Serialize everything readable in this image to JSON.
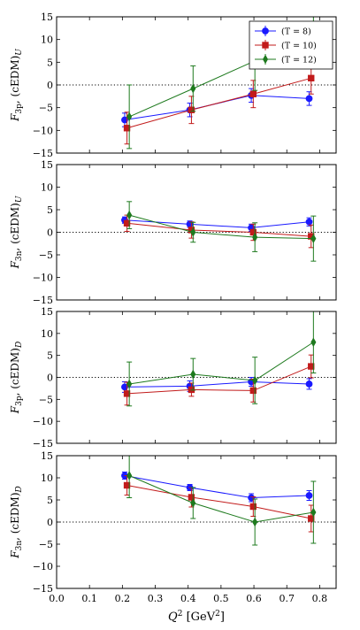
{
  "chart_data": {
    "type": "scatter",
    "xlabel": "Q^2 [GeV^2]",
    "xlim": [
      0.0,
      0.85
    ],
    "xticks": [
      "0.0",
      "0.1",
      "0.2",
      "0.3",
      "0.4",
      "0.5",
      "0.6",
      "0.7",
      "0.8"
    ],
    "error_bars": true,
    "reference_line": {
      "y": 0,
      "style": "dotted"
    },
    "legend": {
      "location": "top-right",
      "panel": 0,
      "entries": [
        "(T = 8)",
        "(T = 10)",
        "(T = 12)"
      ]
    },
    "series_styles": [
      {
        "name": "(T = 8)",
        "color": "#1a1aff",
        "marker": "circle"
      },
      {
        "name": "(T = 10)",
        "color": "#c21b1b",
        "marker": "square"
      },
      {
        "name": "(T = 12)",
        "color": "#1e7a1e",
        "marker": "diamond"
      }
    ],
    "panels": [
      {
        "ylabel": "F_{3p}, (cEDM)_U",
        "ylim": [
          -15,
          15
        ],
        "yticks": [
          "−15",
          "−10",
          "−5",
          "0",
          "5",
          "10",
          "15"
        ],
        "series": [
          {
            "name": "(T = 8)",
            "x": [
              0.207,
              0.405,
              0.592,
              0.768
            ],
            "y": [
              -7.7,
              -5.5,
              -2.3,
              -3.0
            ],
            "err": [
              1.5,
              1.5,
              1.5,
              1.5
            ]
          },
          {
            "name": "(T = 10)",
            "x": [
              0.214,
              0.41,
              0.598,
              0.774
            ],
            "y": [
              -9.5,
              -5.5,
              -2.0,
              1.5
            ],
            "err": [
              3.5,
              3.0,
              3.0,
              3.5
            ]
          },
          {
            "name": "(T = 12)",
            "x": [
              0.221,
              0.415,
              0.603,
              0.781
            ],
            "y": [
              -7.0,
              -0.8,
              5.3,
              10.0
            ],
            "err": [
              7.0,
              5.0,
              6.5,
              5.0
            ]
          }
        ]
      },
      {
        "ylabel": "F_{3n}, (cEDM)_U",
        "ylim": [
          -15,
          15
        ],
        "yticks": [
          "−15",
          "−10",
          "−5",
          "0",
          "5",
          "10",
          "15"
        ],
        "series": [
          {
            "name": "(T = 8)",
            "x": [
              0.207,
              0.405,
              0.592,
              0.768
            ],
            "y": [
              2.7,
              1.8,
              1.0,
              2.3
            ],
            "err": [
              0.7,
              0.7,
              0.8,
              0.9
            ]
          },
          {
            "name": "(T = 10)",
            "x": [
              0.214,
              0.41,
              0.598,
              0.774
            ],
            "y": [
              2.0,
              0.5,
              0.0,
              -0.9
            ],
            "err": [
              1.8,
              1.8,
              1.8,
              2.5
            ]
          },
          {
            "name": "(T = 12)",
            "x": [
              0.221,
              0.415,
              0.603,
              0.781
            ],
            "y": [
              3.8,
              0.0,
              -1.1,
              -1.4
            ],
            "err": [
              3.0,
              2.2,
              3.2,
              5.0
            ]
          }
        ]
      },
      {
        "ylabel": "F_{3p}, (cEDM)_D",
        "ylim": [
          -15,
          15
        ],
        "yticks": [
          "−15",
          "−10",
          "−5",
          "0",
          "5",
          "10",
          "15"
        ],
        "series": [
          {
            "name": "(T = 8)",
            "x": [
              0.207,
              0.405,
              0.592,
              0.768
            ],
            "y": [
              -2.2,
              -2.0,
              -1.0,
              -1.5
            ],
            "err": [
              1.2,
              1.2,
              1.0,
              1.2
            ]
          },
          {
            "name": "(T = 10)",
            "x": [
              0.214,
              0.41,
              0.598,
              0.774
            ],
            "y": [
              -3.7,
              -2.8,
              -3.0,
              2.5
            ],
            "err": [
              2.6,
              1.5,
              2.6,
              2.6
            ]
          },
          {
            "name": "(T = 12)",
            "x": [
              0.221,
              0.415,
              0.603,
              0.781
            ],
            "y": [
              -1.5,
              0.7,
              -0.7,
              8.0
            ],
            "err": [
              5.0,
              3.6,
              5.3,
              7.0
            ]
          }
        ]
      },
      {
        "ylabel": "F_{3n}, (cEDM)_D",
        "ylim": [
          -15,
          15
        ],
        "yticks": [
          "−15",
          "−10",
          "−5",
          "0",
          "5",
          "10",
          "15"
        ],
        "series": [
          {
            "name": "(T = 8)",
            "x": [
              0.207,
              0.405,
              0.592,
              0.768
            ],
            "y": [
              10.5,
              7.8,
              5.5,
              6.0
            ],
            "err": [
              0.8,
              0.7,
              0.9,
              1.1
            ]
          },
          {
            "name": "(T = 10)",
            "x": [
              0.214,
              0.41,
              0.598,
              0.774
            ],
            "y": [
              8.3,
              5.6,
              3.5,
              0.8
            ],
            "err": [
              2.2,
              2.2,
              2.2,
              3.0
            ]
          },
          {
            "name": "(T = 12)",
            "x": [
              0.221,
              0.415,
              0.603,
              0.781
            ],
            "y": [
              10.5,
              4.3,
              0.0,
              2.2
            ],
            "err": [
              5.0,
              3.5,
              5.2,
              7.0
            ]
          }
        ]
      }
    ]
  }
}
